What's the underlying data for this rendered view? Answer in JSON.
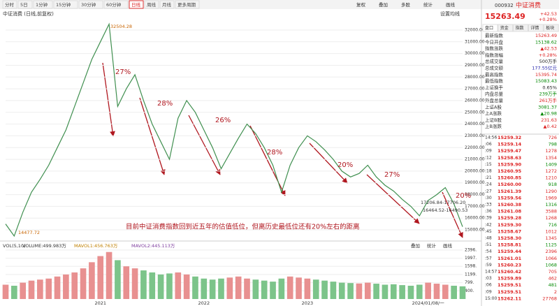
{
  "toolbar": {
    "periods": [
      "分时",
      "5日",
      "1分钟",
      "15分钟",
      "30分钟",
      "60分钟",
      "日线",
      "周线",
      "月线",
      "更多周期"
    ],
    "active_period": "日线",
    "tools": [
      "复权",
      "叠加",
      "多股",
      "统计",
      "画线"
    ]
  },
  "chart_title": "中证消费 (日线,前复权)",
  "ma_setting": "设置均线",
  "chart_data": [
    {
      "type": "line",
      "series": [
        {
          "name": "中证消费",
          "color": "#3f8f4f",
          "values": [
            15500,
            14477.72,
            16500,
            18200,
            19300,
            20500,
            22000,
            23500,
            25500,
            27500,
            29500,
            31000,
            32504.28,
            25500,
            27000,
            28200,
            26000,
            24000,
            22500,
            21000,
            24500,
            26000,
            25000,
            23500,
            22000,
            20200,
            21500,
            22800,
            24000,
            23200,
            22000,
            20500,
            18200,
            20500,
            22000,
            23000,
            22500,
            21800,
            21000,
            20000,
            19500,
            19800,
            20500,
            19500,
            18800,
            18300,
            17600,
            17000,
            16200,
            17500,
            18000,
            18600,
            17200,
            15263.49
          ]
        }
      ],
      "categories": [
        null,
        null,
        null,
        null,
        null,
        null,
        null,
        null,
        null,
        null,
        null,
        "2021",
        null,
        null,
        null,
        null,
        null,
        null,
        null,
        null,
        null,
        null,
        null,
        "2022",
        null,
        null,
        null,
        null,
        null,
        null,
        null,
        null,
        null,
        null,
        null,
        "2023",
        null,
        null,
        null,
        null,
        null,
        null,
        null,
        null,
        null,
        null,
        null,
        null,
        null,
        "2024/01/08/一",
        null,
        null,
        null,
        null
      ],
      "ylim": [
        14350,
        32770
      ],
      "yticks": [
        {
          "value": 15000,
          "label": "15000.00"
        },
        {
          "value": 16000,
          "label": "16000.00"
        },
        {
          "value": 17000,
          "label": "17000.00"
        },
        {
          "value": 18000,
          "label": "18000.00"
        },
        {
          "value": 19000,
          "label": "19000.00"
        },
        {
          "value": 20000,
          "label": "20000.00"
        },
        {
          "value": 21000,
          "label": "21000.00"
        },
        {
          "value": 22000,
          "label": "22000.00"
        },
        {
          "value": 23000,
          "label": "23000.00"
        },
        {
          "value": 24000,
          "label": "24000.00"
        },
        {
          "value": 25000,
          "label": "25000.00"
        },
        {
          "value": 26000,
          "label": "26000.00"
        },
        {
          "value": 27000,
          "label": "27000.00"
        },
        {
          "value": 28000,
          "label": "28000.00"
        },
        {
          "value": 29000,
          "label": "29000.00"
        },
        {
          "value": 30000,
          "label": "30000.00"
        },
        {
          "value": 31000,
          "label": "31000.00"
        },
        {
          "value": 32000,
          "label": "32000.00"
        }
      ],
      "grid": true,
      "annotations": [
        "27%",
        "28%",
        "26%",
        "28%",
        "20%",
        "27%",
        "20%"
      ],
      "caption": "目前中证消费指数回到近五年的估值低位，但离历史最低位还有20%左右的距离",
      "point_labels": [
        "32504.28",
        "14477.72",
        "17206.84-17706.20",
        "16464.52-16490.53"
      ]
    },
    {
      "type": "bar",
      "legend": [
        "VOL(5,10)",
        "VOLUME:499.983万",
        "MAVOL1:456.763万",
        "MAVOL2:445.113万"
      ],
      "tools": [
        "叠加",
        "统计",
        "画线"
      ],
      "up_color": "#e89090",
      "down_color": "#7cc48a",
      "values": [
        700,
        650,
        800,
        900,
        950,
        1000,
        1100,
        1200,
        1300,
        1500,
        1800,
        2100,
        2300,
        1900,
        1600,
        1500,
        1400,
        1300,
        1200,
        1250,
        1300,
        1200,
        1100,
        1000,
        950,
        1000,
        1050,
        1100,
        1000,
        950,
        900,
        850,
        1000,
        1100,
        1050,
        1000,
        950,
        900,
        850,
        800,
        780,
        760,
        800,
        750,
        700,
        720,
        680,
        650,
        700,
        800,
        750,
        700,
        650,
        620
      ],
      "ylim": [
        0,
        2700
      ],
      "yticks": [
        {
          "value": 2396,
          "label": "2396."
        },
        {
          "value": 1997,
          "label": "1997."
        },
        {
          "value": 1598,
          "label": "1598."
        },
        {
          "value": 1199,
          "label": "1199."
        },
        {
          "value": 799,
          "label": "799."
        },
        {
          "value": 400,
          "label": "400."
        }
      ]
    }
  ],
  "quote": {
    "code": "000932",
    "name": "中证消费",
    "price": "15263.49",
    "change": "+42.53",
    "pct": "+0.28%",
    "tabs": [
      "盘口",
      "资金",
      "指数",
      "详情",
      "板块"
    ],
    "rows": [
      {
        "label": "最新指数",
        "value": "15263.49",
        "color": "#d22"
      },
      {
        "label": "今日开盘",
        "value": "15138.62",
        "color": "#080"
      },
      {
        "label": "指数涨跌",
        "value": "▲42.53",
        "color": "#d22"
      },
      {
        "label": "指数涨幅",
        "value": "+0.28%",
        "color": "#d22"
      },
      {
        "label": "总成交量",
        "value": "500万手",
        "color": "#222"
      },
      {
        "label": "总成交额",
        "value": "177.55亿元",
        "color": "#22a"
      },
      {
        "label": "最高指数",
        "value": "15395.74",
        "color": "#d22"
      },
      {
        "label": "最低指数",
        "value": "15083.43",
        "color": "#080"
      },
      {
        "label": "上证换手",
        "value": "0.65%",
        "color": "#222"
      },
      {
        "label": "内盘总量",
        "value": "239万手",
        "color": "#080"
      },
      {
        "label": "外盘总量",
        "value": "261万手",
        "color": "#d22"
      },
      {
        "label": "上证A股",
        "value": "3081.37",
        "color": "#080"
      },
      {
        "label": "上A涨跌",
        "value": "▲20.98",
        "color": "#080"
      },
      {
        "label": "上证B股",
        "value": "231.63",
        "color": "#d22"
      },
      {
        "label": "上B涨跌",
        "value": "▲0.42",
        "color": "#d22"
      }
    ]
  },
  "trades": [
    [
      "14:56",
      "15259.32",
      "726"
    ],
    [
      ":06",
      "15259.14",
      "798"
    ],
    [
      ":09",
      "15259.47",
      "1278"
    ],
    [
      ":12",
      "15258.63",
      "1354"
    ],
    [
      ":15",
      "15259.90",
      "1409"
    ],
    [
      ":18",
      "15260.95",
      "1272"
    ],
    [
      ":21",
      "15260.85",
      "1210"
    ],
    [
      ":24",
      "15260.00",
      "918"
    ],
    [
      ":27",
      "15261.39",
      "1290"
    ],
    [
      ":30",
      "15259.56",
      "1969"
    ],
    [
      ":33",
      "15260.38",
      "1316"
    ],
    [
      ":36",
      "15261.08",
      "3588"
    ],
    [
      ":39",
      "15259.28",
      "1268"
    ],
    [
      ":42",
      "15259.30",
      "716"
    ],
    [
      ":45",
      "15258.67",
      "1012"
    ],
    [
      ":48",
      "15258.30",
      "1345"
    ],
    [
      ":51",
      "15258.81",
      "1125"
    ],
    [
      ":54",
      "15259.44",
      "2396"
    ],
    [
      ":57",
      "15261.01",
      "1066"
    ],
    [
      ":59",
      "15260.23",
      "1068"
    ],
    [
      "14:57",
      "15260.42",
      "705"
    ],
    [
      ":03",
      "15259.89",
      "462"
    ],
    [
      ":06",
      "15259.51",
      "481"
    ],
    [
      ":09",
      "15259.51",
      "2"
    ],
    [
      "15:00",
      "15262.11",
      "27768"
    ]
  ]
}
